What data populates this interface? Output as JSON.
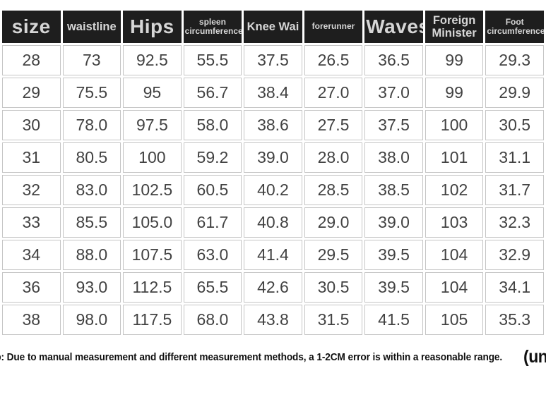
{
  "chart_data": {
    "type": "table",
    "columns": [
      "size",
      "waistline",
      "Hips",
      "spleen circumference",
      "Knee Wai",
      "forerunner",
      "Waves",
      "Foreign Minister",
      "Foot circumference"
    ],
    "rows": [
      [
        "28",
        "73",
        "92.5",
        "55.5",
        "37.5",
        "26.5",
        "36.5",
        "99",
        "29.3"
      ],
      [
        "29",
        "75.5",
        "95",
        "56.7",
        "38.4",
        "27.0",
        "37.0",
        "99",
        "29.9"
      ],
      [
        "30",
        "78.0",
        "97.5",
        "58.0",
        "38.6",
        "27.5",
        "37.5",
        "100",
        "30.5"
      ],
      [
        "31",
        "80.5",
        "100",
        "59.2",
        "39.0",
        "28.0",
        "38.0",
        "101",
        "31.1"
      ],
      [
        "32",
        "83.0",
        "102.5",
        "60.5",
        "40.2",
        "28.5",
        "38.5",
        "102",
        "31.7"
      ],
      [
        "33",
        "85.5",
        "105.0",
        "61.7",
        "40.8",
        "29.0",
        "39.0",
        "103",
        "32.3"
      ],
      [
        "34",
        "88.0",
        "107.5",
        "63.0",
        "41.4",
        "29.5",
        "39.5",
        "104",
        "32.9"
      ],
      [
        "36",
        "93.0",
        "112.5",
        "65.5",
        "42.6",
        "30.5",
        "39.5",
        "104",
        "34.1"
      ],
      [
        "38",
        "98.0",
        "117.5",
        "68.0",
        "43.8",
        "31.5",
        "41.5",
        "105",
        "35.3"
      ]
    ],
    "footnote": "Warm tip: Due to manual measurement and different measurement methods, a 1-2CM error is within a reasonable range.",
    "unit_label": "(unit: CM)",
    "layout_hints": {
      "header_emphasis_xl": [
        0,
        2,
        6
      ],
      "header_emphasis_md": [
        1,
        4,
        7
      ],
      "header_emphasis_sm": [
        3,
        5,
        8
      ],
      "grid": "on",
      "legend_position": "none"
    }
  },
  "colors": {
    "header_bg": "#1e1e1e",
    "header_text": "#d6d6d6",
    "body_text": "#424242",
    "grid": "#c5c5c5",
    "footnote_text": "#0f0f0f",
    "page_bg": "#ffffff"
  }
}
